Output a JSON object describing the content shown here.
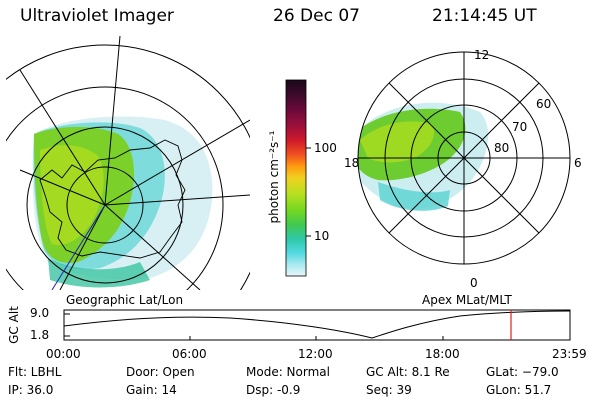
{
  "header": {
    "instrument": "Ultraviolet Imager",
    "date": "26 Dec 07",
    "time": "21:14:45 UT"
  },
  "left_panel": {
    "caption": "Geographic Lat/Lon"
  },
  "right_panel": {
    "caption": "Apex MLat/MLT",
    "mlt_labels": {
      "top": "12",
      "left": "18",
      "right": "6",
      "bottom": "0"
    },
    "lat_labels": [
      "60",
      "70",
      "80"
    ]
  },
  "colorbar": {
    "unit_label": "photon cm⁻²s⁻¹",
    "ticks": [
      "100",
      "10"
    ],
    "colors": [
      "#1a0a1a",
      "#3a0a2a",
      "#6a0a3a",
      "#a0103a",
      "#d01a2a",
      "#f05020",
      "#ff9a10",
      "#f0d020",
      "#b8e020",
      "#78d820",
      "#40c850",
      "#30c8a8",
      "#50d8e0",
      "#a8eaf0",
      "#e8f6f8"
    ]
  },
  "altitude_plot": {
    "ylabel": "GC Alt",
    "y_ticks": [
      "9.0",
      "1.8"
    ],
    "x_ticks": [
      "00:00",
      "06:00",
      "12:00",
      "18:00",
      "23:59"
    ],
    "marker_time": "21:14:45",
    "marker_color": "#e02020"
  },
  "info": {
    "filter": "Flt: LBHL",
    "ip": "IP: 36.0",
    "door": "Door: Open",
    "gain": "Gain: 14",
    "mode": "Mode: Normal",
    "dsp": "Dsp:    -0.9",
    "gc_alt": "GC Alt: 8.1 Re",
    "seq": "Seq: 39",
    "glat": "GLat: −79.0",
    "glon": "GLon:  51.7"
  }
}
